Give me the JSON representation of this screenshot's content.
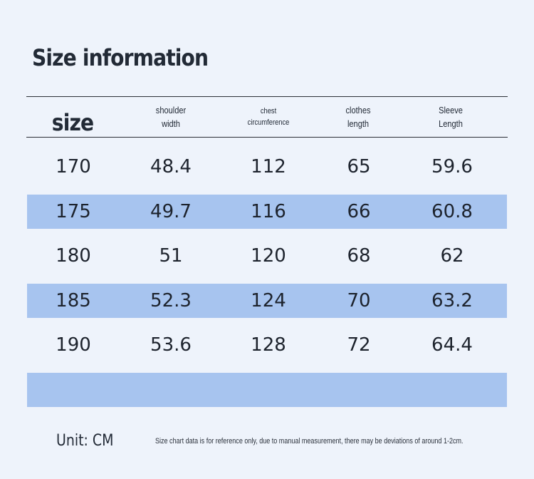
{
  "title": "Size information",
  "headers": [
    {
      "key": "size",
      "lines": [
        "size"
      ]
    },
    {
      "key": "shoulder",
      "lines": [
        "shoulder",
        "width"
      ]
    },
    {
      "key": "chest",
      "lines": [
        "chest",
        "circumference"
      ]
    },
    {
      "key": "clothes",
      "lines": [
        "clothes",
        "length"
      ]
    },
    {
      "key": "sleeve",
      "lines": [
        "Sleeve",
        "Length"
      ]
    }
  ],
  "rows": [
    [
      "170",
      "48.4",
      "112",
      "65",
      "59.6"
    ],
    [
      "175",
      "49.7",
      "116",
      "66",
      "60.8"
    ],
    [
      "180",
      "51",
      "120",
      "68",
      "62"
    ],
    [
      "185",
      "52.3",
      "124",
      "70",
      "63.2"
    ],
    [
      "190",
      "53.6",
      "128",
      "72",
      "64.4"
    ],
    [
      "",
      "",
      "",
      "",
      ""
    ]
  ],
  "colors": {
    "background": "#eef3fb",
    "row_highlight": "#a7c4ef",
    "text": "#1f2530"
  },
  "footer": {
    "unit": "Unit: CM",
    "note": "Size chart data is for reference only, due to manual measurement, there may be deviations of around 1-2cm."
  }
}
